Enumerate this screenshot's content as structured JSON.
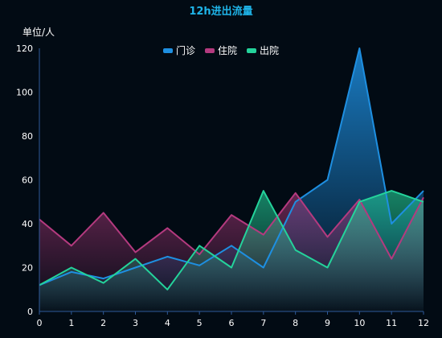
{
  "chart_data": {
    "type": "area",
    "title": "12h进出流量",
    "ylabel": "单位/人",
    "xlabel": "",
    "x": [
      0,
      1,
      2,
      3,
      4,
      5,
      6,
      7,
      8,
      9,
      10,
      11,
      12
    ],
    "ylim": [
      0,
      120
    ],
    "yticks": [
      0,
      20,
      40,
      60,
      80,
      100,
      120
    ],
    "grid": false,
    "legend_position": "top-center",
    "series": [
      {
        "name": "门诊",
        "color": "#1e8fe1",
        "values": [
          12,
          18,
          15,
          20,
          25,
          21,
          30,
          20,
          50,
          60,
          120,
          40,
          55
        ]
      },
      {
        "name": "住院",
        "color": "#b43a7f",
        "values": [
          42,
          30,
          45,
          27,
          38,
          26,
          44,
          35,
          54,
          34,
          51,
          24,
          52
        ]
      },
      {
        "name": "出院",
        "color": "#24d39b",
        "values": [
          12,
          20,
          13,
          24,
          10,
          30,
          20,
          55,
          28,
          20,
          50,
          55,
          50
        ]
      }
    ]
  }
}
